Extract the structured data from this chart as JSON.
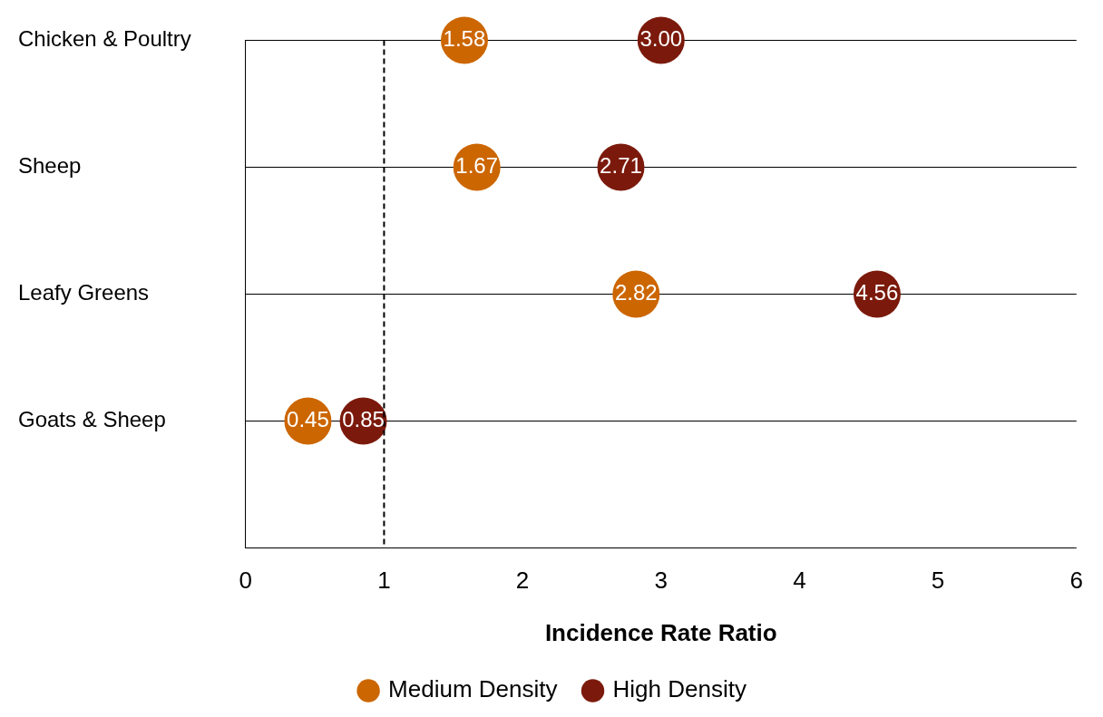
{
  "chart_data": {
    "type": "scatter",
    "orientation": "horizontal",
    "xlabel": "Incidence Rate Ratio",
    "categories": [
      "Chicken & Poultry",
      "Sheep",
      "Leafy Greens",
      "Goats & Sheep",
      null
    ],
    "series": [
      {
        "name": "Medium Density",
        "color": "#cc6600",
        "values": [
          1.58,
          1.67,
          2.82,
          0.45,
          null
        ],
        "value_labels": [
          "1.58",
          "1.67",
          "2.82",
          "0.45",
          null
        ]
      },
      {
        "name": "High Density",
        "color": "#7b1a0c",
        "values": [
          3.0,
          2.71,
          4.56,
          0.85,
          null
        ],
        "value_labels": [
          "3.00",
          "2.71",
          "4.56",
          "0.85",
          null
        ]
      }
    ],
    "xlim": [
      0,
      6
    ],
    "xticks": [
      0,
      1,
      2,
      3,
      4,
      5,
      6
    ],
    "ref_lines": [
      {
        "axis": "x",
        "value": 1,
        "line_style": "dashed",
        "color": "#000000"
      }
    ],
    "grid": "y",
    "legend": "bottom",
    "marker": "circle"
  }
}
